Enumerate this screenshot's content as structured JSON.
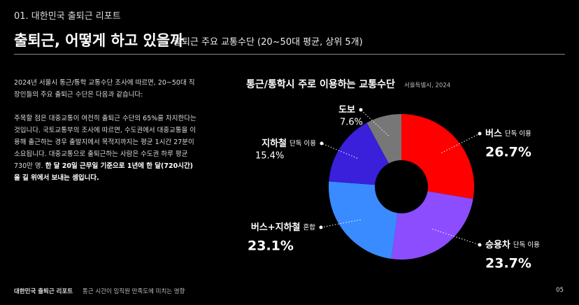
{
  "header": {
    "section": "01. 대한민국 출퇴근 리포트",
    "title": "출퇴근, 어떻게 하고 있을까",
    "subtitle": "출퇴근 주요 교통수단 (20~50대 평균, 상위 5개)"
  },
  "body": {
    "paragraphs": [
      [
        {
          "text": "2024년 서울시 통근/통학 교통수단 조사에 따르면, 20~50대 직장인들의 주요 출퇴근 수단은 다음과 같습니다:",
          "bold": false
        }
      ],
      [
        {
          "text": "주목할 점은 대중교통이 여전히 출퇴근 수단의 65%를 차지한다는 것입니다. 국토교통부의 조사에 따르면, 수도권에서 대중교통을 이용해 출근하는 경우 출발지에서 목적지까지는 평균 1시간 27분이 소요됩니다. 대중교통으로 출퇴근하는 사람은 수도권 하루 평균 730만 명. ",
          "bold": false
        },
        {
          "text": "한 달 20일 근무일 기준으로 1년에 한 달(720시간)을 길 위에서 보내는 셈입니다.",
          "bold": true
        }
      ]
    ]
  },
  "chart_data": {
    "type": "donut",
    "title": "통근/통학시 주로 이용하는 교통수단",
    "subtitle": "서울특별시, 2024",
    "categories": [
      "버스",
      "승용차",
      "버스+지하철",
      "지하철",
      "도보"
    ],
    "details": [
      "단독 이용",
      "단독 이용",
      "혼합",
      "단독 이용",
      null
    ],
    "values": [
      26.7,
      23.7,
      23.1,
      15.4,
      7.6
    ],
    "value_labels": [
      "26.7%",
      "23.7%",
      "23.1%",
      "15.4%",
      "7.6%"
    ],
    "colors": [
      "#ff0000",
      "#8c4dff",
      "#3a8bff",
      "#3a1fdb",
      "#777777"
    ]
  },
  "footer": {
    "report": "대한민국 출퇴근 리포트",
    "topic": "통근 시간이 임직원 만족도에 미치는 영향",
    "page": "05"
  }
}
